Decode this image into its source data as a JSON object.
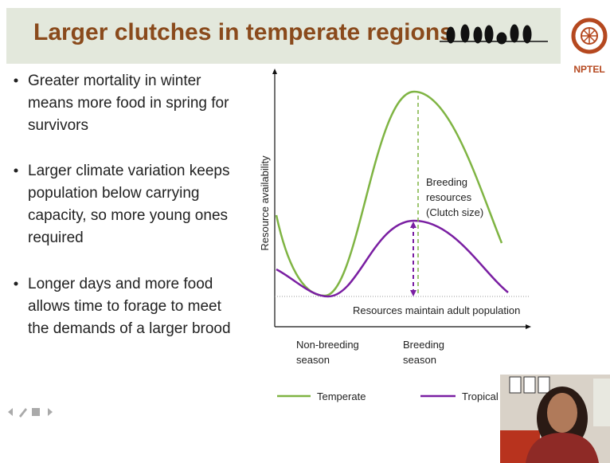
{
  "header": {
    "title": "Larger clutches in temperate regions",
    "logo_text": "NPTEL"
  },
  "bullets": [
    [
      "Greater mortality in winter",
      "means more food in spring for",
      "survivors"
    ],
    [
      "Larger climate variation keeps",
      "population below carrying",
      "capacity, so more young ones",
      "required"
    ],
    [
      "Longer days and more food",
      "allows time to forage to meet",
      "the demands of a larger brood"
    ]
  ],
  "diagram": {
    "y_axis_label": "Resource availability",
    "peak_label": [
      "Breeding",
      "resources",
      "(Clutch size)"
    ],
    "baseline_label": "Resources maintain adult population",
    "x_labels": [
      [
        "Non-breeding",
        "season"
      ],
      [
        "Breeding",
        "season"
      ]
    ],
    "legend": [
      "Temperate",
      "Tropical"
    ]
  }
}
